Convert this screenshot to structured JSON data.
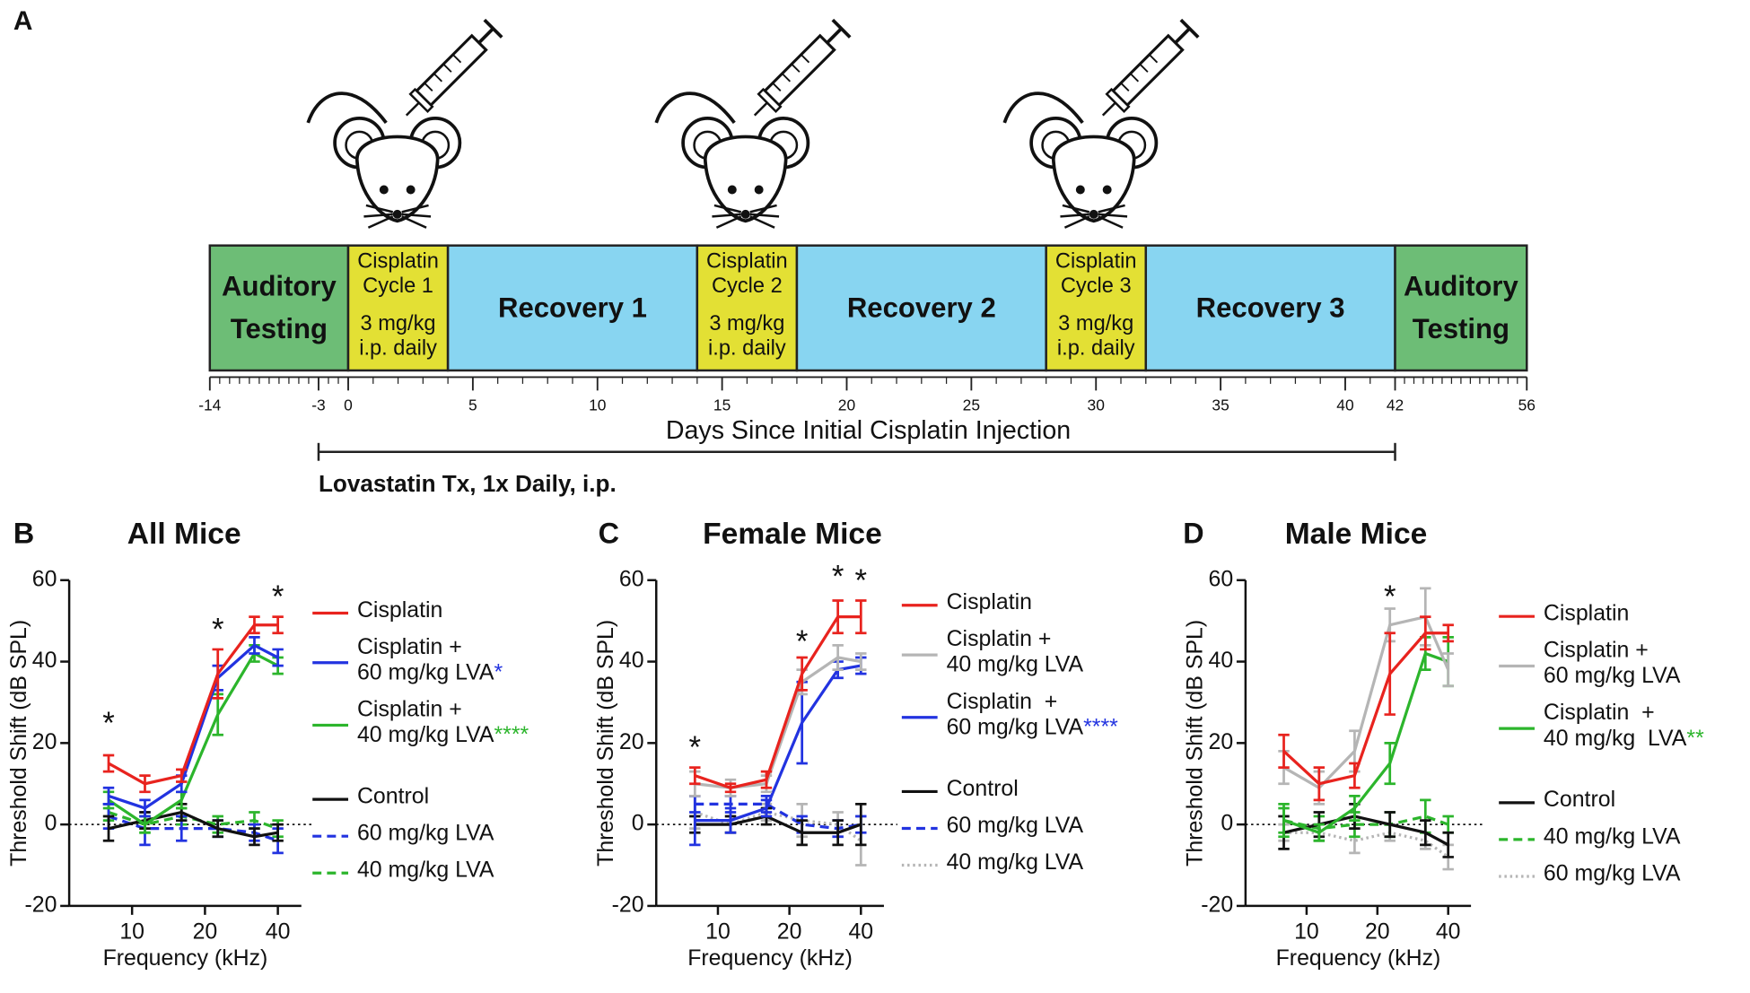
{
  "timeline": {
    "panel": "A",
    "segments": [
      {
        "label": "Auditory\nTesting",
        "start": -14,
        "end": 0,
        "color": "#6dbd76"
      },
      {
        "label": "Cisplatin\nCycle 1",
        "sublabel": "3 mg/kg\ni.p. daily",
        "start": 0,
        "end": 4,
        "color": "#e3e034"
      },
      {
        "label": "Recovery 1",
        "start": 4,
        "end": 14,
        "color": "#88d5f1"
      },
      {
        "label": "Cisplatin\nCycle 2",
        "sublabel": "3 mg/kg\ni.p. daily",
        "start": 14,
        "end": 18,
        "color": "#e3e034"
      },
      {
        "label": "Recovery 2",
        "start": 18,
        "end": 28,
        "color": "#88d5f1"
      },
      {
        "label": "Cisplatin\nCycle 3",
        "sublabel": "3 mg/kg\ni.p. daily",
        "start": 28,
        "end": 32,
        "color": "#e3e034"
      },
      {
        "label": "Recovery 3",
        "start": 32,
        "end": 42,
        "color": "#88d5f1"
      },
      {
        "label": "Auditory\nTesting",
        "start": 42,
        "end": 56,
        "color": "#6dbd76"
      }
    ],
    "ticks": [
      -14,
      -3,
      0,
      5,
      10,
      15,
      20,
      25,
      30,
      35,
      40,
      42,
      56
    ],
    "axis_title": "Days Since Initial Cisplatin Injection",
    "treatment": {
      "label": "Lovastatin Tx, 1x Daily, i.p.",
      "start": -3,
      "end": 42
    }
  },
  "chart_data": [
    {
      "type": "line",
      "panel": "B",
      "title": "All Mice",
      "x_label": "Frequency (kHz)",
      "y_label": "Threshold Shift (dB SPL)",
      "x": [
        8,
        11.3,
        16,
        22.6,
        32,
        40
      ],
      "xlim": [
        5.5,
        50
      ],
      "xticks": [
        10,
        20,
        40
      ],
      "log_x": true,
      "ylim": [
        -20,
        60
      ],
      "yticks": [
        -20,
        0,
        20,
        40,
        60
      ],
      "reference_line": 0,
      "series": [
        {
          "name": "Cisplatin",
          "color": "#e8231e",
          "style": "solid",
          "values": [
            15,
            10,
            12,
            37,
            49,
            49
          ],
          "errors": [
            2,
            2,
            1.5,
            6,
            2,
            2
          ]
        },
        {
          "name": "Cisplatin +\n60 mg/kg LVA",
          "significance": "*",
          "color": "#2233e0",
          "style": "solid",
          "values": [
            7,
            4,
            10,
            36,
            44,
            41
          ],
          "errors": [
            2,
            2,
            2,
            3,
            2,
            2
          ]
        },
        {
          "name": "Cisplatin +\n40 mg/kg LVA",
          "significance": "****",
          "color": "#2cb52c",
          "style": "solid",
          "values": [
            6,
            0,
            6,
            27,
            42,
            39
          ],
          "errors": [
            2,
            2,
            2,
            5,
            2,
            2
          ]
        },
        {
          "name": "Control",
          "color": "#111111",
          "style": "solid",
          "values": [
            -1,
            1,
            3,
            -1,
            -3,
            -2
          ],
          "errors": [
            3,
            2,
            2,
            2,
            2,
            2
          ]
        },
        {
          "name": "60 mg/kg LVA",
          "color": "#2233e0",
          "style": "dashed",
          "values": [
            2,
            -1,
            -1,
            -1,
            -2,
            -4
          ],
          "errors": [
            3,
            4,
            3,
            2,
            2,
            3
          ]
        },
        {
          "name": "40 mg/kg LVA",
          "color": "#2cb52c",
          "style": "dashed",
          "values": [
            3,
            0,
            2,
            0,
            1,
            -1
          ],
          "errors": [
            2,
            2,
            2,
            2,
            2,
            2
          ]
        }
      ],
      "annotations": [
        {
          "text": "*",
          "x": 8,
          "y": 26,
          "color": "#2cb52c"
        },
        {
          "text": "*",
          "x": 22.6,
          "y": 49,
          "color": "#2cb52c"
        },
        {
          "text": "*",
          "x": 40,
          "y": 57,
          "color": "#2cb52c"
        }
      ]
    },
    {
      "type": "line",
      "panel": "C",
      "title": "Female Mice",
      "x_label": "Frequency (kHz)",
      "y_label": "Threshold Shift (dB SPL)",
      "x": [
        8,
        11.3,
        16,
        22.6,
        32,
        40
      ],
      "xlim": [
        5.5,
        50
      ],
      "xticks": [
        10,
        20,
        40
      ],
      "log_x": true,
      "ylim": [
        -20,
        60
      ],
      "yticks": [
        -20,
        0,
        20,
        40,
        60
      ],
      "reference_line": 0,
      "series": [
        {
          "name": "Cisplatin",
          "color": "#e8231e",
          "style": "solid",
          "values": [
            12,
            9,
            11,
            37,
            51,
            51
          ],
          "errors": [
            2,
            1,
            2,
            4,
            4,
            4
          ]
        },
        {
          "name": "Cisplatin +\n40 mg/kg LVA",
          "color": "#b5b5b5",
          "style": "solid",
          "values": [
            10,
            9,
            10,
            35,
            41,
            40
          ],
          "errors": [
            3,
            2,
            2,
            3,
            3,
            2
          ]
        },
        {
          "name": "Cisplatin  +\n60 mg/kg LVA",
          "significance": "****",
          "color": "#2233e0",
          "style": "solid",
          "values": [
            1,
            1,
            4,
            25,
            38,
            39
          ],
          "errors": [
            6,
            3,
            2,
            10,
            2,
            2
          ]
        },
        {
          "name": "Control",
          "color": "#111111",
          "style": "solid",
          "values": [
            0,
            0,
            2,
            -2,
            -2,
            0
          ],
          "errors": [
            2,
            2,
            2,
            3,
            3,
            5
          ]
        },
        {
          "name": "60 mg/kg LVA",
          "color": "#2233e0",
          "style": "dashed",
          "values": [
            5,
            5,
            5,
            0,
            -1,
            0
          ],
          "errors": [
            2,
            2,
            2,
            2,
            2,
            2
          ]
        },
        {
          "name": "40 mg/kg LVA",
          "color": "#b5b5b5",
          "style": "dotted",
          "values": [
            3,
            0,
            3,
            1,
            0,
            -4
          ],
          "errors": [
            4,
            2,
            2,
            4,
            3,
            6
          ]
        }
      ],
      "annotations": [
        {
          "text": "*",
          "x": 8,
          "y": 20,
          "color": "#2233e0"
        },
        {
          "text": "*",
          "x": 22.6,
          "y": 46,
          "color": "#2233e0"
        },
        {
          "text": "*",
          "x": 32,
          "y": 62,
          "color": "#2233e0"
        },
        {
          "text": "*",
          "x": 40,
          "y": 61,
          "color": "#2233e0"
        }
      ]
    },
    {
      "type": "line",
      "panel": "D",
      "title": "Male Mice",
      "x_label": "Frequency (kHz)",
      "y_label": "Threshold Shift (dB SPL)",
      "x": [
        8,
        11.3,
        16,
        22.6,
        32,
        40
      ],
      "xlim": [
        5.5,
        50
      ],
      "xticks": [
        10,
        20,
        40
      ],
      "log_x": true,
      "ylim": [
        -20,
        60
      ],
      "yticks": [
        -20,
        0,
        20,
        40,
        60
      ],
      "reference_line": 0,
      "series": [
        {
          "name": "Cisplatin",
          "color": "#e8231e",
          "style": "solid",
          "values": [
            18,
            10,
            12,
            37,
            47,
            47
          ],
          "errors": [
            4,
            4,
            3,
            10,
            4,
            2
          ]
        },
        {
          "name": "Cisplatin +\n60 mg/kg LVA",
          "color": "#b5b5b5",
          "style": "solid",
          "values": [
            14,
            9,
            18,
            49,
            51,
            38
          ],
          "errors": [
            4,
            4,
            5,
            4,
            7,
            4
          ]
        },
        {
          "name": "Cisplatin  +\n40 mg/kg  LVA",
          "significance": "**",
          "color": "#2cb52c",
          "style": "solid",
          "values": [
            1,
            -2,
            4,
            15,
            42,
            40
          ],
          "errors": [
            4,
            2,
            3,
            5,
            4,
            6
          ]
        },
        {
          "name": "Control",
          "color": "#111111",
          "style": "solid",
          "values": [
            -2,
            0,
            2,
            0,
            -2,
            -5
          ],
          "errors": [
            4,
            3,
            3,
            3,
            3,
            3
          ]
        },
        {
          "name": "40 mg/kg LVA",
          "color": "#2cb52c",
          "style": "dashed",
          "values": [
            1,
            -1,
            0,
            0,
            2,
            0
          ],
          "errors": [
            3,
            3,
            3,
            3,
            4,
            2
          ]
        },
        {
          "name": "60 mg/kg LVA",
          "color": "#b5b5b5",
          "style": "dotted",
          "values": [
            -2,
            -2,
            -4,
            -2,
            -4,
            -8
          ],
          "errors": [
            2,
            2,
            3,
            2,
            2,
            3
          ]
        }
      ],
      "annotations": [
        {
          "text": "*",
          "x": 22.6,
          "y": 57,
          "color": "#2cb52c"
        }
      ]
    }
  ]
}
